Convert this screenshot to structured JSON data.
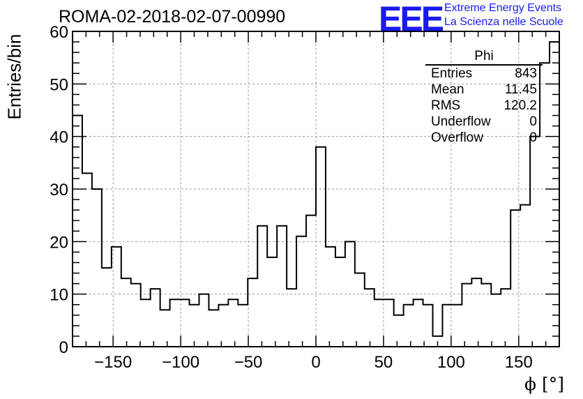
{
  "header": {
    "title": "ROMA-02-2018-02-07-00990",
    "logo_text": "EEE",
    "org_line1": "Extreme Energy Events",
    "org_line2": "La Scienza nelle Scuole",
    "logo_color": "#1a1aee"
  },
  "stats": {
    "name": "Phi",
    "rows": [
      {
        "label": "Entries",
        "value": "843"
      },
      {
        "label": "Mean",
        "value": "11.45"
      },
      {
        "label": "RMS",
        "value": "120.2"
      },
      {
        "label": "Underflow",
        "value": "0"
      },
      {
        "label": "Overflow",
        "value": "0"
      }
    ]
  },
  "chart_data": {
    "type": "histogram",
    "title": "ROMA-02-2018-02-07-00990",
    "xlabel": "ϕ [°]",
    "ylabel": "Entries/bin",
    "xlim": [
      -180,
      180
    ],
    "ylim": [
      0,
      60
    ],
    "xticks": [
      -150,
      -100,
      -50,
      0,
      50,
      100,
      150
    ],
    "yticks": [
      0,
      10,
      20,
      30,
      40,
      50,
      60
    ],
    "grid": true,
    "bin_width": 7.2,
    "bin_edges_start": -180,
    "values": [
      44,
      33,
      30,
      15,
      19,
      13,
      12,
      9,
      11,
      7,
      9,
      9,
      8,
      10,
      7,
      8,
      9,
      8,
      13,
      23,
      17,
      23,
      11,
      21,
      25,
      38,
      19,
      17,
      20,
      14,
      11,
      9,
      9,
      6,
      8,
      9,
      8,
      2,
      8,
      8,
      12,
      13,
      12,
      10,
      11,
      26,
      27,
      40,
      54,
      58
    ]
  }
}
